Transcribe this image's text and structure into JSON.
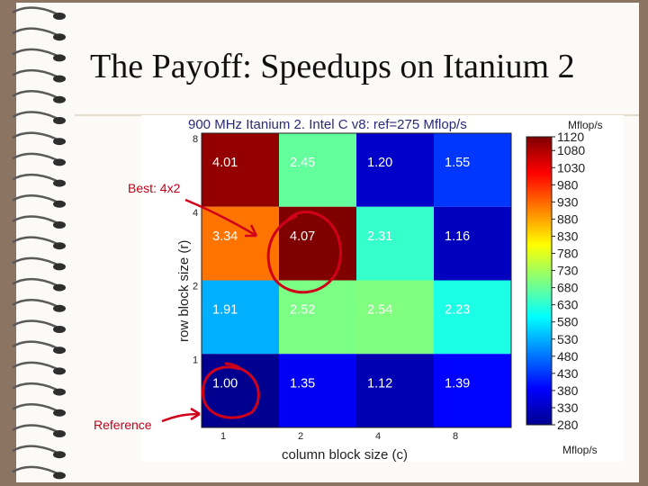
{
  "slide": {
    "title": "The Payoff: Speedups on Itanium 2",
    "annotations": {
      "best": "Best: 4x2",
      "reference": "Reference"
    }
  },
  "chart_data": {
    "type": "heatmap",
    "title": "900 MHz Itanium 2. Intel C v8: ref=275 Mflop/s",
    "xlabel": "column block size (c)",
    "ylabel": "row block size (r)",
    "x_categories": [
      "1",
      "2",
      "4",
      "8"
    ],
    "y_categories": [
      "8",
      "4",
      "2",
      "1"
    ],
    "values": [
      [
        4.01,
        2.45,
        1.2,
        1.55
      ],
      [
        3.34,
        4.07,
        2.31,
        1.16
      ],
      [
        1.91,
        2.52,
        2.54,
        2.23
      ],
      [
        1.0,
        1.35,
        1.12,
        1.39
      ]
    ],
    "cell_labels": [
      [
        "4.01",
        "2.45",
        "1.20",
        "1.55"
      ],
      [
        "3.34",
        "4.07",
        "2.31",
        "1.16"
      ],
      [
        "1.91",
        "2.52",
        "2.54",
        "2.23"
      ],
      [
        "1.00",
        "1.35",
        "1.12",
        "1.39"
      ]
    ],
    "color_unit": "Mflop/s",
    "colorbar": {
      "title_unit": "Mflop/s",
      "bottom_unit": "Mflop/s",
      "range": [
        280,
        1120
      ],
      "ticks": [
        "1120",
        "1080",
        "1030",
        "980",
        "930",
        "880",
        "830",
        "780",
        "730",
        "680",
        "630",
        "580",
        "530",
        "480",
        "430",
        "380",
        "330",
        "280"
      ],
      "colormap": "jet"
    },
    "highlights": [
      {
        "row": 1,
        "col": 1,
        "label": "Best: 4x2"
      },
      {
        "row": 3,
        "col": 0,
        "label": "Reference"
      }
    ],
    "colors": {
      "annotation": "#d0001a",
      "title": "#2a2a7a"
    }
  }
}
